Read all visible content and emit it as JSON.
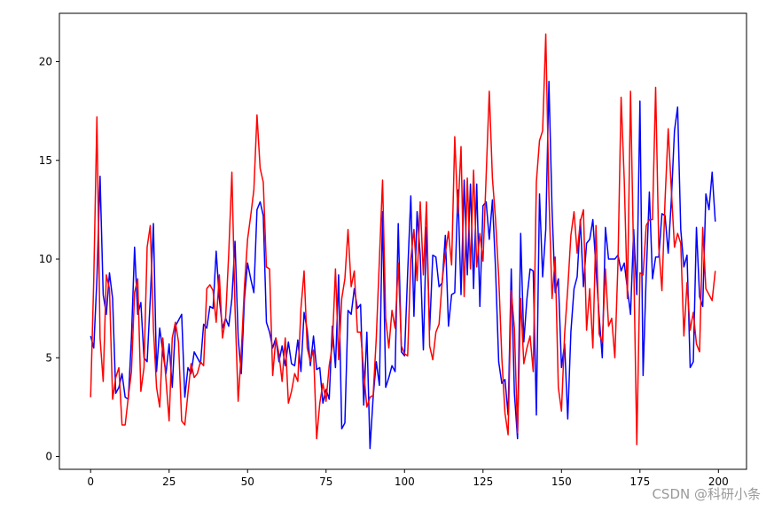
{
  "chart_data": {
    "type": "line",
    "x": [
      0,
      1,
      2,
      3,
      4,
      5,
      6,
      7,
      8,
      9,
      10,
      11,
      12,
      13,
      14,
      15,
      16,
      17,
      18,
      19,
      20,
      21,
      22,
      23,
      24,
      25,
      26,
      27,
      28,
      29,
      30,
      31,
      32,
      33,
      34,
      35,
      36,
      37,
      38,
      39,
      40,
      41,
      42,
      43,
      44,
      45,
      46,
      47,
      48,
      49,
      50,
      51,
      52,
      53,
      54,
      55,
      56,
      57,
      58,
      59,
      60,
      61,
      62,
      63,
      64,
      65,
      66,
      67,
      68,
      69,
      70,
      71,
      72,
      73,
      74,
      75,
      76,
      77,
      78,
      79,
      80,
      81,
      82,
      83,
      84,
      85,
      86,
      87,
      88,
      89,
      90,
      91,
      92,
      93,
      94,
      95,
      96,
      97,
      98,
      99,
      100,
      101,
      102,
      103,
      104,
      105,
      106,
      107,
      108,
      109,
      110,
      111,
      112,
      113,
      114,
      115,
      116,
      117,
      118,
      119,
      120,
      121,
      122,
      123,
      124,
      125,
      126,
      127,
      128,
      129,
      130,
      131,
      132,
      133,
      134,
      135,
      136,
      137,
      138,
      139,
      140,
      141,
      142,
      143,
      144,
      145,
      146,
      147,
      148,
      149,
      150,
      151,
      152,
      153,
      154,
      155,
      156,
      157,
      158,
      159,
      160,
      161,
      162,
      163,
      164,
      165,
      166,
      167,
      168,
      169,
      170,
      171,
      172,
      173,
      174,
      175,
      176,
      177,
      178,
      179,
      180,
      181,
      182,
      183,
      184,
      185,
      186,
      187,
      188,
      189,
      190,
      191,
      192,
      193,
      194,
      195,
      196,
      197,
      198,
      199
    ],
    "series": [
      {
        "color": "#0000ff",
        "values": [
          6.1,
          5.5,
          9,
          14.2,
          8.2,
          7.2,
          9.3,
          8,
          3.2,
          3.5,
          4.2,
          3,
          2.9,
          6,
          10.6,
          7.2,
          7.8,
          5,
          4.8,
          8,
          11.8,
          4.3,
          6.5,
          5.3,
          4.2,
          5.7,
          3.5,
          6.6,
          6.9,
          7.2,
          3,
          4.5,
          4.2,
          5.3,
          5,
          4.7,
          6.7,
          6.5,
          7.6,
          7.5,
          10.4,
          8,
          6.5,
          7,
          6.6,
          8,
          10.9,
          6,
          4.2,
          8,
          9.8,
          9,
          8.3,
          12.5,
          12.9,
          12.2,
          6.8,
          6.3,
          5.5,
          6,
          4.8,
          5.6,
          4.6,
          5.8,
          4.7,
          4.6,
          5.9,
          4.3,
          7.3,
          6.4,
          4.6,
          6.1,
          4.4,
          4.5,
          2.7,
          3.4,
          2.9,
          6.6,
          4.5,
          9.2,
          1.4,
          1.7,
          7.4,
          7.2,
          8.5,
          7.5,
          7.7,
          2.6,
          6.3,
          0.4,
          3,
          4.8,
          3.6,
          12.4,
          3.5,
          4,
          4.6,
          4.3,
          11.8,
          5.3,
          5.1,
          9.3,
          13.2,
          7.1,
          12.4,
          10.2,
          5.4,
          11.6,
          6.4,
          10.2,
          10.1,
          8.6,
          8.8,
          11.2,
          6.6,
          8.2,
          8.3,
          13.5,
          8.2,
          14,
          9.2,
          13.8,
          8.5,
          13.8,
          7.6,
          12.7,
          12.9,
          11,
          13,
          9.5,
          4.8,
          3.7,
          3.9,
          2.1,
          9.5,
          3.2,
          0.9,
          11.3,
          5.8,
          8,
          9.5,
          9.4,
          2.1,
          13.3,
          9.1,
          11.5,
          19,
          12.5,
          8.3,
          9,
          4.5,
          5.7,
          1.9,
          6.3,
          8.5,
          9.1,
          12,
          8.6,
          10.8,
          11,
          12,
          9.5,
          7.1,
          5,
          11.6,
          10,
          10,
          10,
          10.2,
          9.4,
          9.8,
          8.5,
          7.2,
          11.5,
          8.2,
          18,
          4.1,
          9.2,
          13.4,
          9,
          10.1,
          10.1,
          12.3,
          12.2,
          10.3,
          13,
          16.5,
          17.7,
          11.5,
          9.6,
          10.2,
          4.5,
          4.8,
          11.6,
          8.1,
          7.6,
          13.3,
          12.5,
          14.4,
          11.9
        ]
      },
      {
        "color": "#ff0000",
        "values": [
          3,
          9,
          17.2,
          6,
          3.8,
          9.2,
          8.5,
          2.9,
          4,
          4.5,
          1.6,
          1.6,
          3,
          4.3,
          8.3,
          9,
          3.3,
          4.5,
          10.6,
          11.7,
          6.5,
          3.5,
          2.5,
          6,
          3.9,
          1.8,
          6,
          6.8,
          5.8,
          1.8,
          1.6,
          3.2,
          4.7,
          4,
          4.2,
          4.8,
          4.6,
          8.5,
          8.7,
          8.4,
          6.8,
          9.2,
          6,
          7,
          10.3,
          14.4,
          7.5,
          2.8,
          5.3,
          8.6,
          11,
          12.2,
          13.5,
          17.3,
          14.6,
          13.9,
          9.6,
          9.5,
          4.1,
          6,
          5.2,
          3.8,
          6,
          2.7,
          3.3,
          4.2,
          3.8,
          7.5,
          9.4,
          5.5,
          4.8,
          5.4,
          0.9,
          2.7,
          3.7,
          2.8,
          4.6,
          5.6,
          9.5,
          4.9,
          8,
          9,
          11.5,
          8.6,
          9.4,
          6.3,
          6.3,
          4.3,
          2.5,
          3,
          3.1,
          6,
          10,
          14,
          7,
          5.5,
          7.4,
          6.5,
          9.8,
          5.6,
          5.2,
          5.1,
          10,
          11.5,
          8.9,
          12.9,
          9.2,
          12.9,
          5.6,
          4.9,
          6.3,
          6.7,
          8.9,
          10.3,
          11.4,
          9.7,
          16.2,
          12.3,
          15.7,
          8.1,
          14.1,
          9.5,
          14.5,
          9.6,
          11.3,
          9.9,
          14.2,
          18.5,
          14.1,
          12,
          9.1,
          5,
          2.2,
          1.1,
          8.4,
          6.5,
          1.2,
          8,
          4.7,
          5.5,
          6.1,
          4.3,
          13.9,
          16,
          16.5,
          21.4,
          13.2,
          8,
          10.1,
          3.5,
          2.3,
          6.2,
          8.5,
          11.2,
          12.4,
          10.3,
          11.9,
          12.5,
          6.4,
          8.5,
          5.5,
          11.7,
          6.2,
          5.8,
          9.5,
          6.6,
          7,
          5,
          9.8,
          18.2,
          14,
          8,
          18.5,
          10,
          0.6,
          9.3,
          9.2,
          11.7,
          12,
          12,
          18.7,
          10.6,
          8.4,
          13,
          16.6,
          13.5,
          10.6,
          11.3,
          10.8,
          6.1,
          8.8,
          6.4,
          7.3,
          5.7,
          5.3,
          11.6,
          8.5,
          8.2,
          7.9,
          9.4
        ]
      }
    ],
    "xlim": [
      -9.95,
      208.95
    ],
    "ylim": [
      -0.65,
      22.45
    ],
    "xticks": [
      0,
      25,
      50,
      75,
      100,
      125,
      150,
      175,
      200
    ],
    "yticks": [
      0,
      5,
      10,
      15,
      20
    ],
    "watermark": "CSDN @科研小条"
  }
}
